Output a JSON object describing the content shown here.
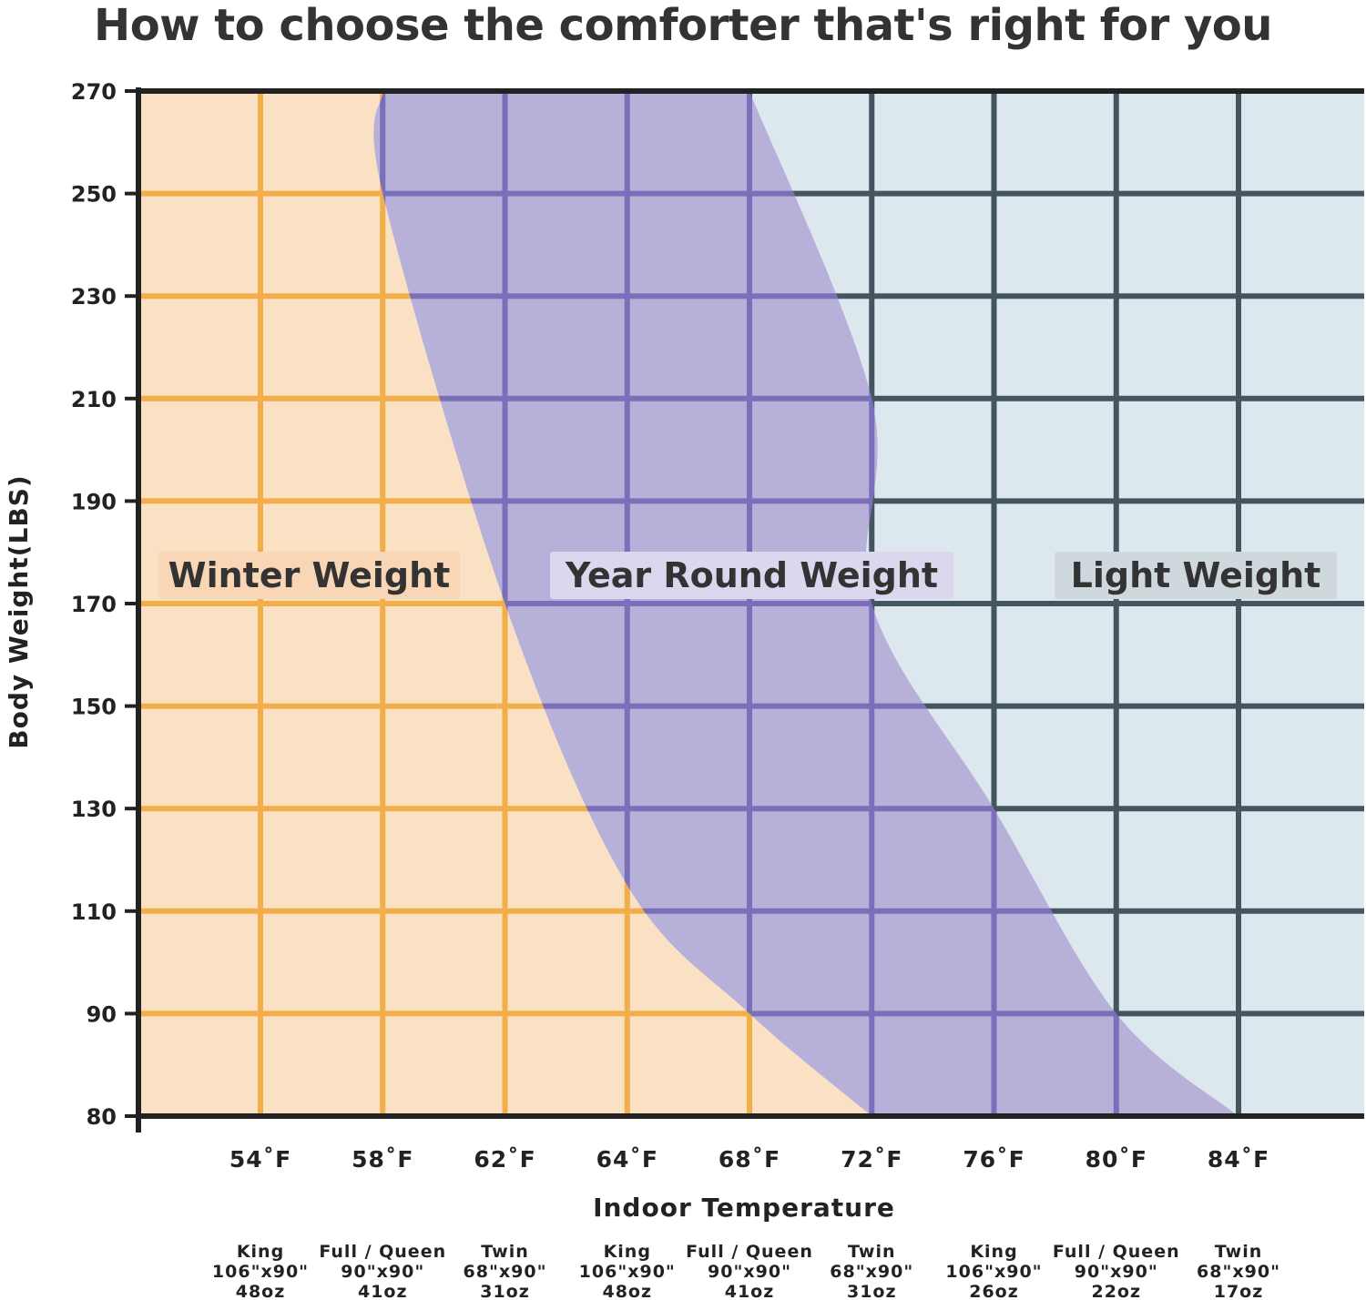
{
  "chart_data": {
    "type": "area",
    "title": "How to choose the comforter that's right for you",
    "xlabel": "Indoor Temperature",
    "ylabel": "Body Weight(LBS)",
    "x_ticks": [
      {
        "value": 54,
        "label": "54˚F"
      },
      {
        "value": 58,
        "label": "58˚F"
      },
      {
        "value": 62,
        "label": "62˚F"
      },
      {
        "value": 64,
        "label": "64˚F"
      },
      {
        "value": 68,
        "label": "68˚F"
      },
      {
        "value": 72,
        "label": "72˚F"
      },
      {
        "value": 76,
        "label": "76˚F"
      },
      {
        "value": 80,
        "label": "80˚F"
      },
      {
        "value": 84,
        "label": "84˚F"
      }
    ],
    "y_ticks": [
      80,
      90,
      110,
      130,
      150,
      170,
      190,
      210,
      230,
      250,
      270
    ],
    "ylim": [
      80,
      270
    ],
    "grid": true,
    "zones": [
      {
        "name": "Winter Weight",
        "color": "#fbe1c4",
        "grid_color": "#f2ae48",
        "label_bg": "#f8d6b6"
      },
      {
        "name": "Year Round Weight",
        "color": "#b7b0d9",
        "grid_color": "#7b6fba",
        "label_bg": "#dcd7ee"
      },
      {
        "name": "Light Weight",
        "color": "#dce7ee",
        "grid_color": "#455560",
        "label_bg": "#cfd8dd"
      }
    ],
    "boundaries": [
      {
        "between": [
          "Winter Weight",
          "Year Round Weight"
        ],
        "points": [
          {
            "x": "58˚F",
            "y": 270
          },
          {
            "x": "58˚F",
            "y": 250
          },
          {
            "x": "62˚F",
            "y": 170
          },
          {
            "x": "64˚F",
            "y": 115
          },
          {
            "x": "68˚F",
            "y": 90
          },
          {
            "x": "72˚F",
            "y": 80
          }
        ]
      },
      {
        "between": [
          "Year Round Weight",
          "Light Weight"
        ],
        "points": [
          {
            "x": "68˚F",
            "y": 270
          },
          {
            "x": "72˚F",
            "y": 210
          },
          {
            "x": "72˚F",
            "y": 170
          },
          {
            "x": "76˚F",
            "y": 130
          },
          {
            "x": "80˚F",
            "y": 90
          },
          {
            "x": "84˚F",
            "y": 80
          }
        ]
      }
    ],
    "sizes": [
      {
        "name": "King",
        "dims": "106\"x90\"",
        "weight": "48oz"
      },
      {
        "name": "Full / Queen",
        "dims": "90\"x90\"",
        "weight": "41oz"
      },
      {
        "name": "Twin",
        "dims": "68\"x90\"",
        "weight": "31oz"
      },
      {
        "name": "King",
        "dims": "106\"x90\"",
        "weight": "48oz"
      },
      {
        "name": "Full / Queen",
        "dims": "90\"x90\"",
        "weight": "41oz"
      },
      {
        "name": "Twin",
        "dims": "68\"x90\"",
        "weight": "31oz"
      },
      {
        "name": "King",
        "dims": "106\"x90\"",
        "weight": "26oz"
      },
      {
        "name": "Full / Queen",
        "dims": "90\"x90\"",
        "weight": "22oz"
      },
      {
        "name": "Twin",
        "dims": "68\"x90\"",
        "weight": "17oz"
      }
    ]
  }
}
